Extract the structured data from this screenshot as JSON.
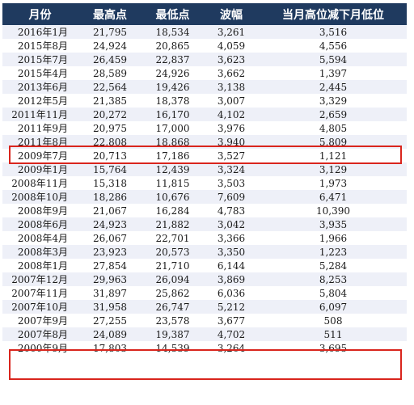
{
  "table": {
    "headers": [
      "月份",
      "最高点",
      "最低点",
      "波幅",
      "当月高位减下月低位"
    ],
    "rows": [
      [
        "2016年1月",
        "21,795",
        "18,534",
        "3,261",
        "3,516"
      ],
      [
        "2015年8月",
        "24,924",
        "20,865",
        "4,059",
        "4,556"
      ],
      [
        "2015年7月",
        "26,459",
        "22,837",
        "3,623",
        "5,594"
      ],
      [
        "2015年4月",
        "28,589",
        "24,926",
        "3,662",
        "1,397"
      ],
      [
        "2013年6月",
        "22,564",
        "19,426",
        "3,138",
        "2,445"
      ],
      [
        "2012年5月",
        "21,385",
        "18,378",
        "3,007",
        "3,329"
      ],
      [
        "2011年11月",
        "20,272",
        "16,170",
        "4,102",
        "2,659"
      ],
      [
        "2011年9月",
        "20,975",
        "17,000",
        "3,976",
        "4,805"
      ],
      [
        "2011年8月",
        "22,808",
        "18,868",
        "3,940",
        "5,809"
      ],
      [
        "2009年7月",
        "20,713",
        "17,186",
        "3,527",
        "1,121"
      ],
      [
        "2009年1月",
        "15,764",
        "12,439",
        "3,324",
        "3,129"
      ],
      [
        "2008年11月",
        "15,318",
        "11,815",
        "3,503",
        "1,973"
      ],
      [
        "2008年10月",
        "18,286",
        "10,676",
        "7,609",
        "6,471"
      ],
      [
        "2008年9月",
        "21,067",
        "16,284",
        "4,783",
        "10,390"
      ],
      [
        "2008年6月",
        "24,923",
        "21,882",
        "3,042",
        "3,935"
      ],
      [
        "2008年4月",
        "26,067",
        "22,701",
        "3,366",
        "1,966"
      ],
      [
        "2008年3月",
        "23,923",
        "20,573",
        "3,350",
        "1,223"
      ],
      [
        "2008年1月",
        "27,854",
        "21,710",
        "6,144",
        "5,284"
      ],
      [
        "2007年12月",
        "29,963",
        "26,094",
        "3,869",
        "8,253"
      ],
      [
        "2007年11月",
        "31,897",
        "25,862",
        "6,036",
        "5,804"
      ],
      [
        "2007年10月",
        "31,958",
        "26,747",
        "5,212",
        "6,097"
      ],
      [
        "2007年9月",
        "27,255",
        "23,578",
        "3,677",
        "508"
      ],
      [
        "2007年8月",
        "24,089",
        "19,387",
        "4,702",
        "511"
      ],
      [
        "2000年9月",
        "17,803",
        "14,539",
        "3,264",
        "3,695"
      ]
    ]
  },
  "colors": {
    "header_bg": "#1f3a5f",
    "band_bg": "#eef0f8",
    "highlight": "#d9251d"
  }
}
